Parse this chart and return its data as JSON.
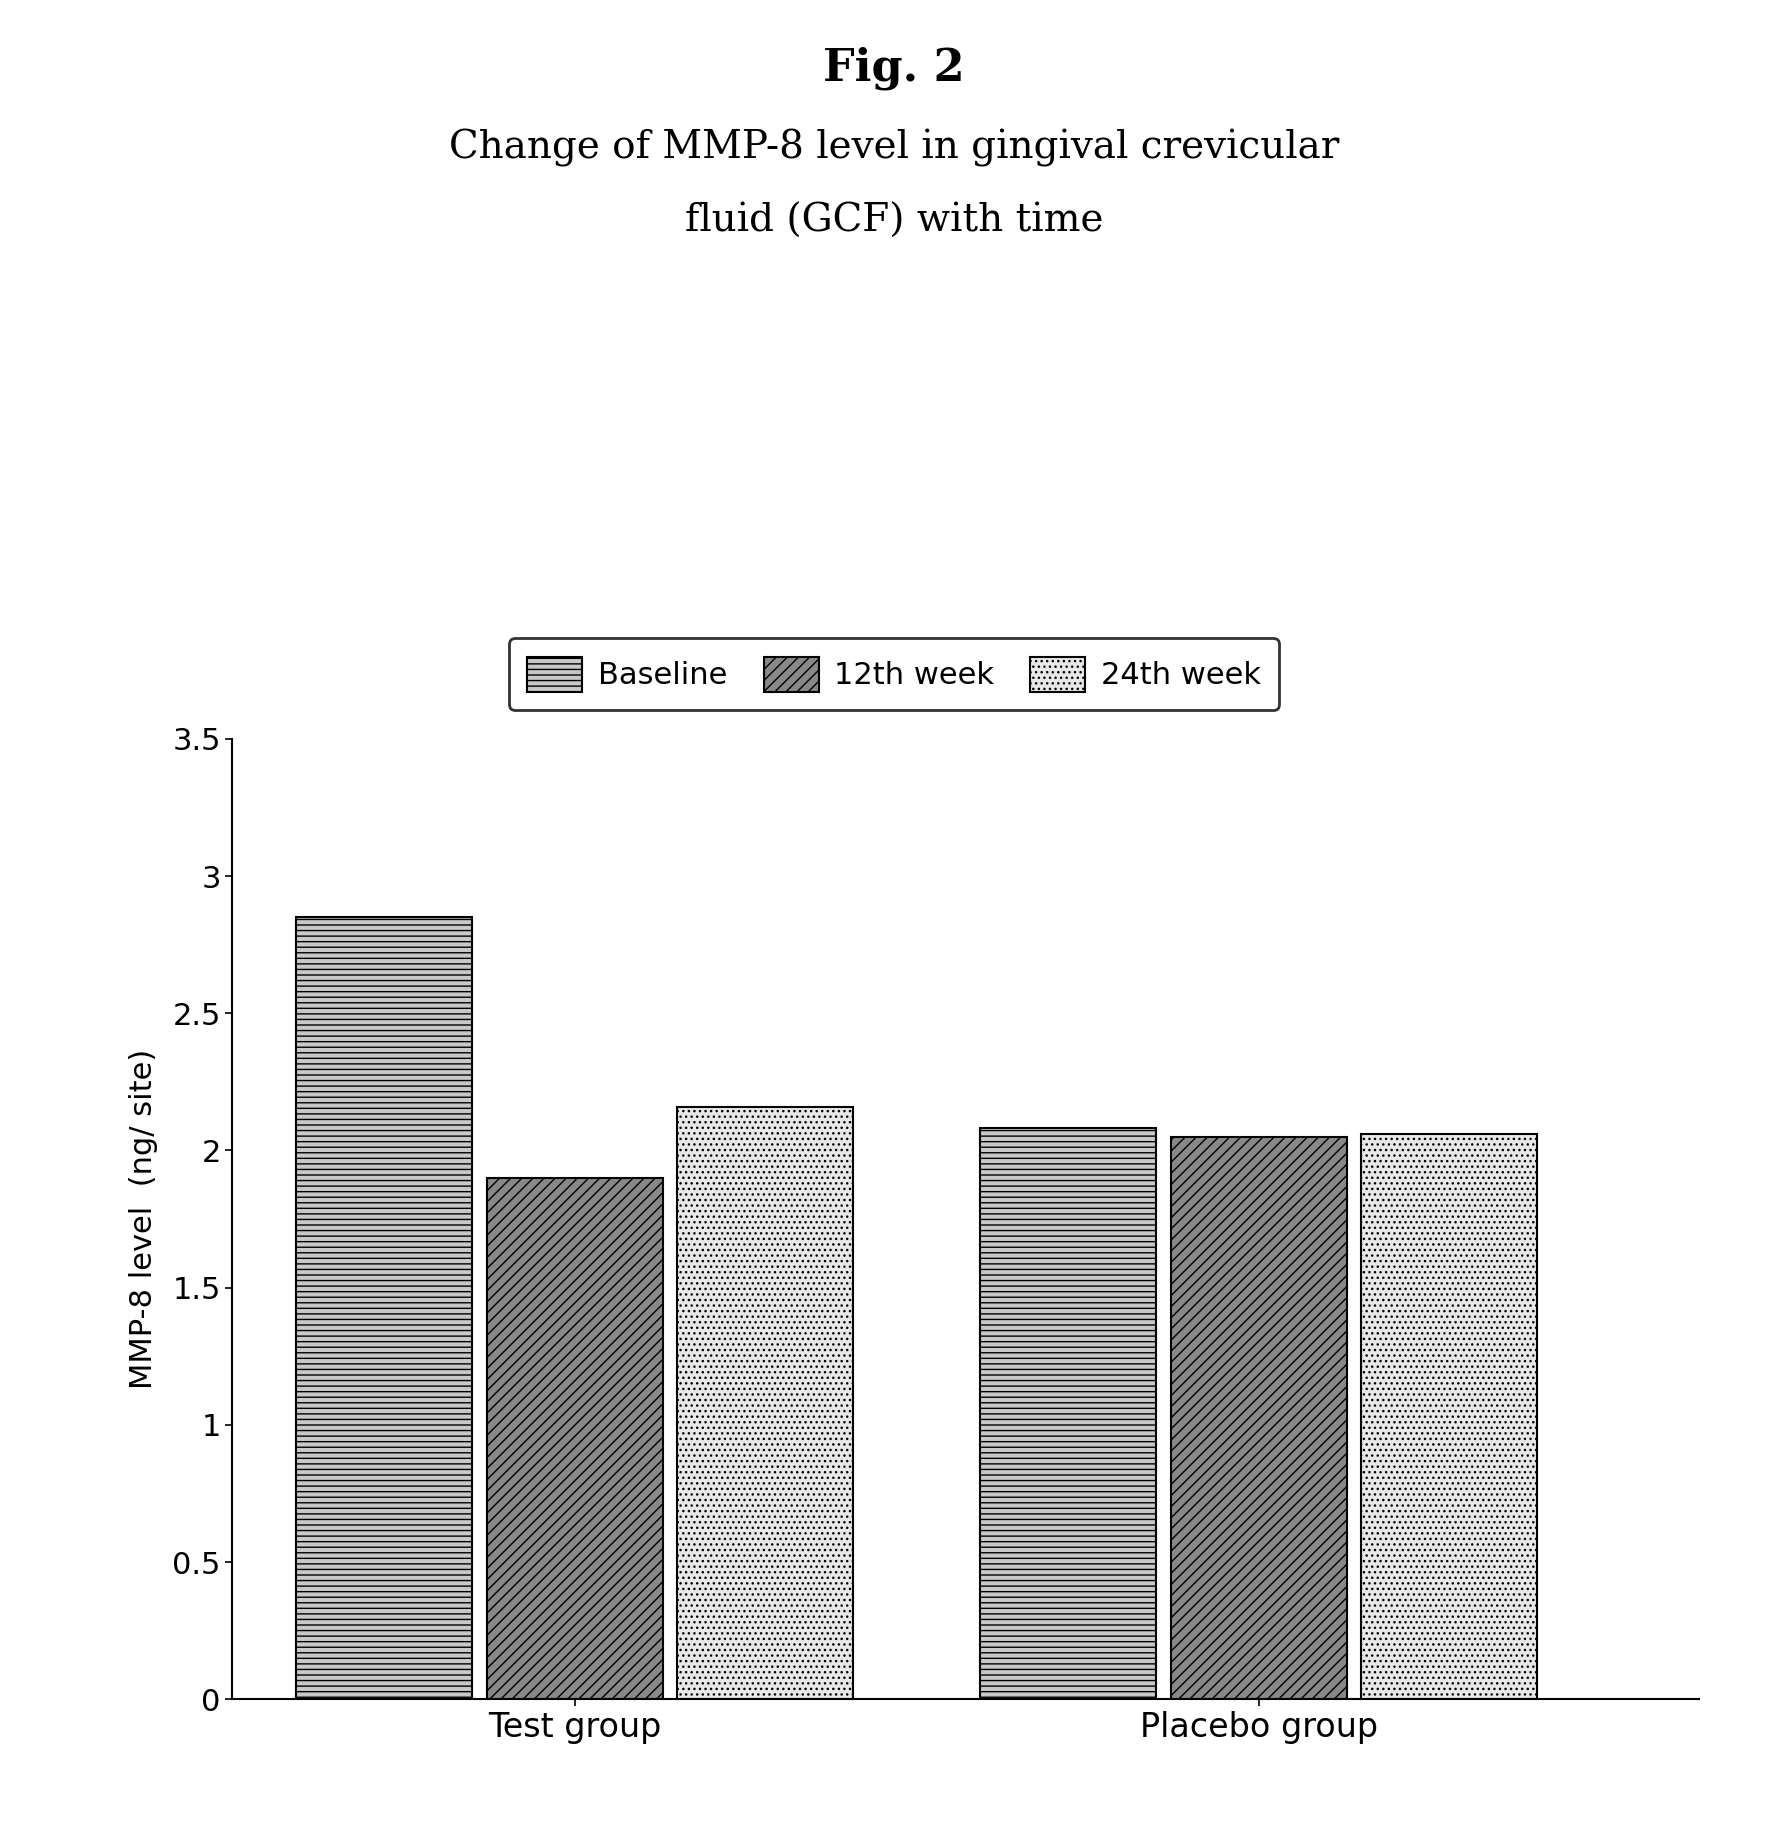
{
  "fig_title": "Fig. 2",
  "subtitle_line1": "Change of MMP-8 level in gingival crevicular",
  "subtitle_line2": "fluid (GCF) with time",
  "groups": [
    "Test group",
    "Placebo group"
  ],
  "series": [
    "Baseline",
    "12th week",
    "24th week"
  ],
  "values": {
    "Test group": [
      2.85,
      1.9,
      2.16
    ],
    "Placebo group": [
      2.08,
      2.05,
      2.06
    ]
  },
  "ylabel": "MMP-8 level  (ng/ site)",
  "ylim": [
    0,
    3.5
  ],
  "yticks": [
    0,
    0.5,
    1.0,
    1.5,
    2.0,
    2.5,
    3.0,
    3.5
  ],
  "ytick_labels": [
    "0",
    "0.5",
    "1",
    "1.5",
    "2",
    "2.5",
    "3",
    "3.5"
  ],
  "background_color": "#ffffff",
  "title_fontsize": 32,
  "subtitle_fontsize": 28,
  "legend_fontsize": 22,
  "axis_label_fontsize": 22,
  "tick_fontsize": 22,
  "group_label_fontsize": 24,
  "bar_width": 0.18,
  "group_centers": [
    0.35,
    1.05
  ],
  "xlim": [
    0.0,
    1.5
  ],
  "hatch_baseline": "---",
  "hatch_12th": "///",
  "hatch_24th": "...",
  "face_baseline": "#c8c8c8",
  "face_12th": "#888888",
  "face_24th": "#e8e8e8",
  "edge_color": "#000000"
}
